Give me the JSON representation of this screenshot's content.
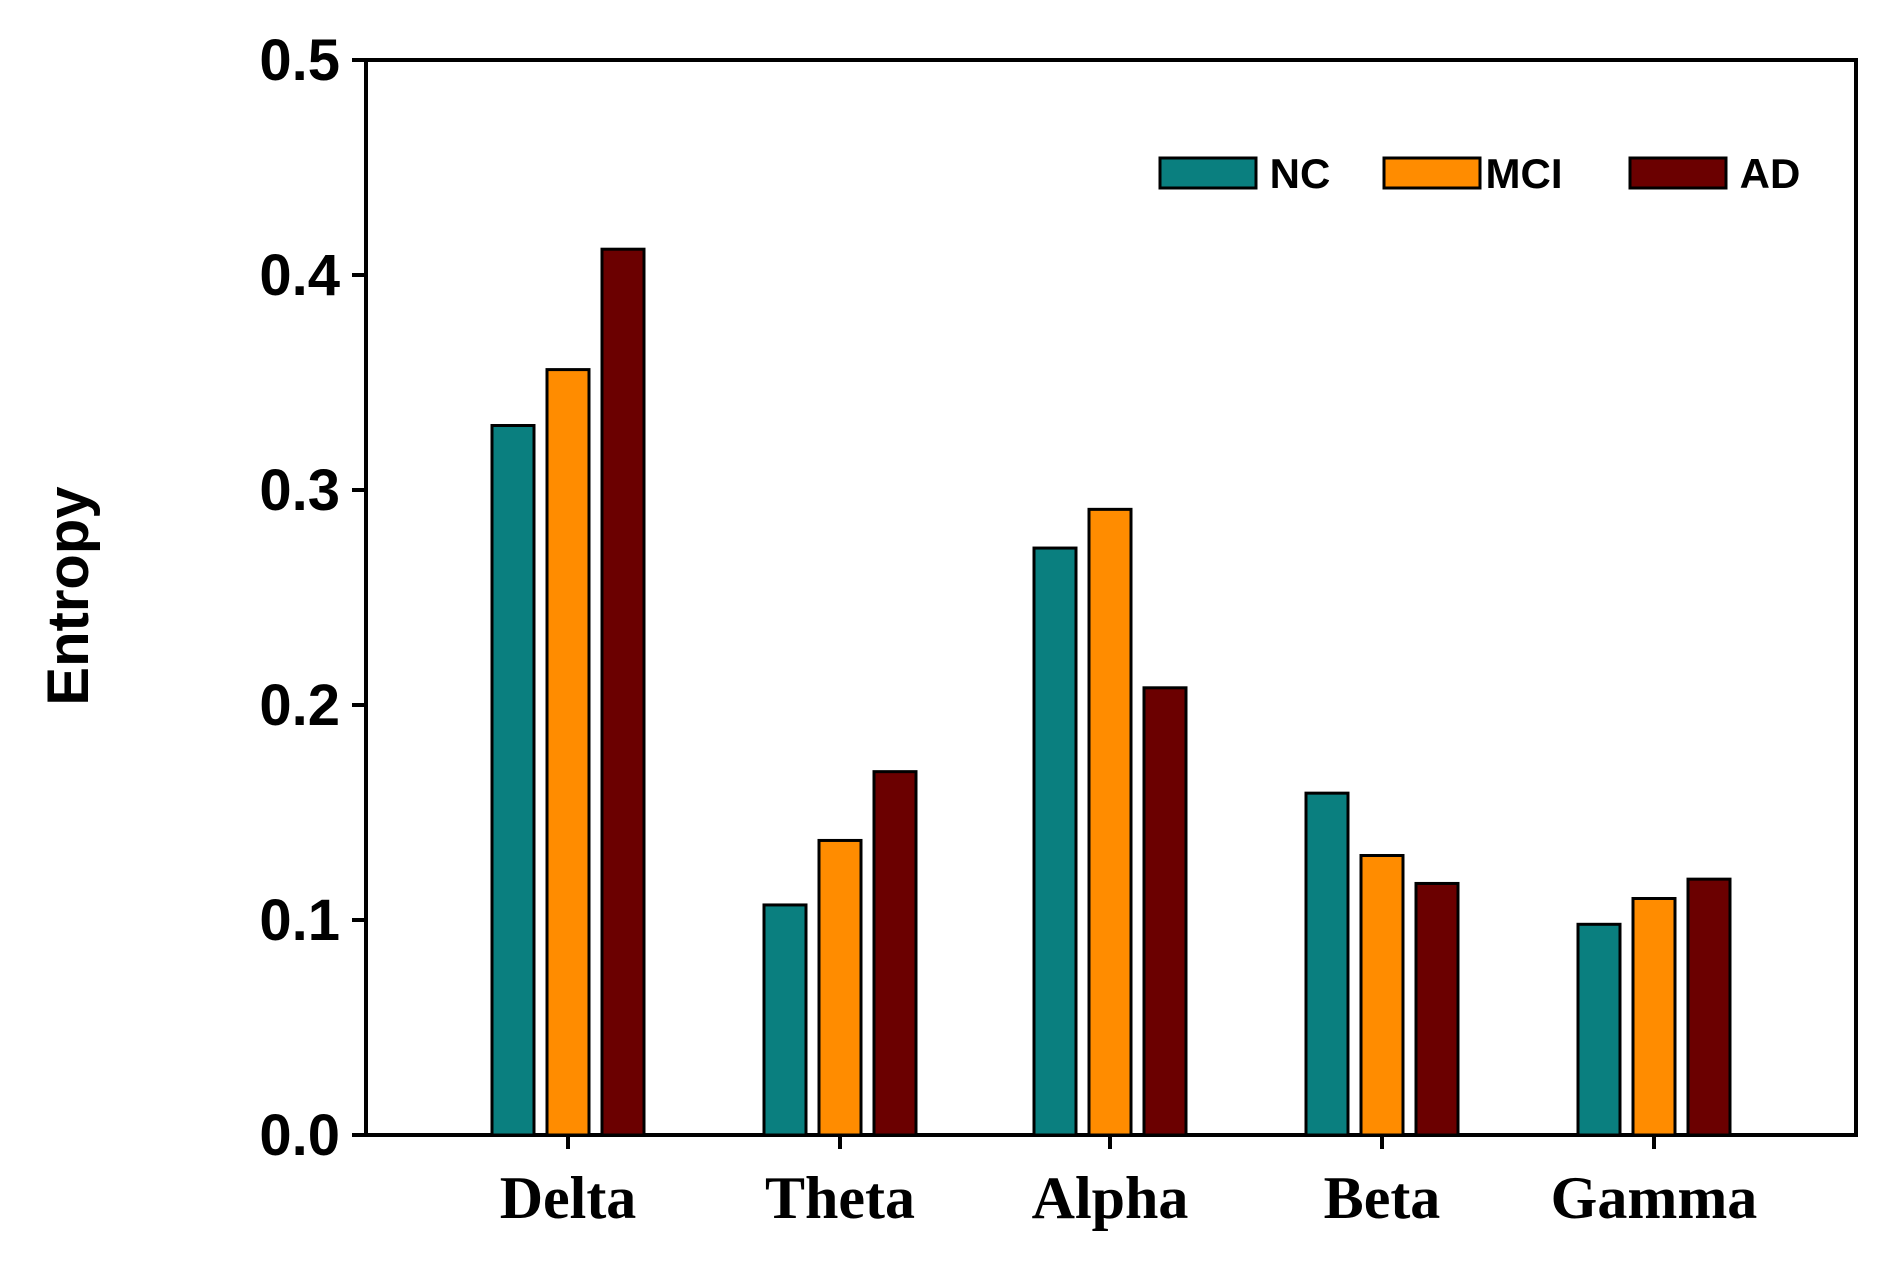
{
  "chart_data": {
    "type": "bar",
    "title": "",
    "xlabel": "",
    "ylabel": "Entropy",
    "ylim": [
      0,
      0.5
    ],
    "yticks": [
      "0.0",
      "0.1",
      "0.2",
      "0.3",
      "0.4",
      "0.5"
    ],
    "categories": [
      "Delta",
      "Theta",
      "Alpha",
      "Beta",
      "Gamma"
    ],
    "series": [
      {
        "name": "NC",
        "color": "#0a7f7f",
        "values": [
          0.33,
          0.107,
          0.273,
          0.159,
          0.098
        ]
      },
      {
        "name": "MCI",
        "color": "#ff8c00",
        "values": [
          0.356,
          0.137,
          0.291,
          0.13,
          0.11
        ]
      },
      {
        "name": "AD",
        "color": "#6b0000",
        "values": [
          0.412,
          0.169,
          0.208,
          0.117,
          0.119
        ]
      }
    ],
    "legend_position": "top-right",
    "grid": false
  }
}
